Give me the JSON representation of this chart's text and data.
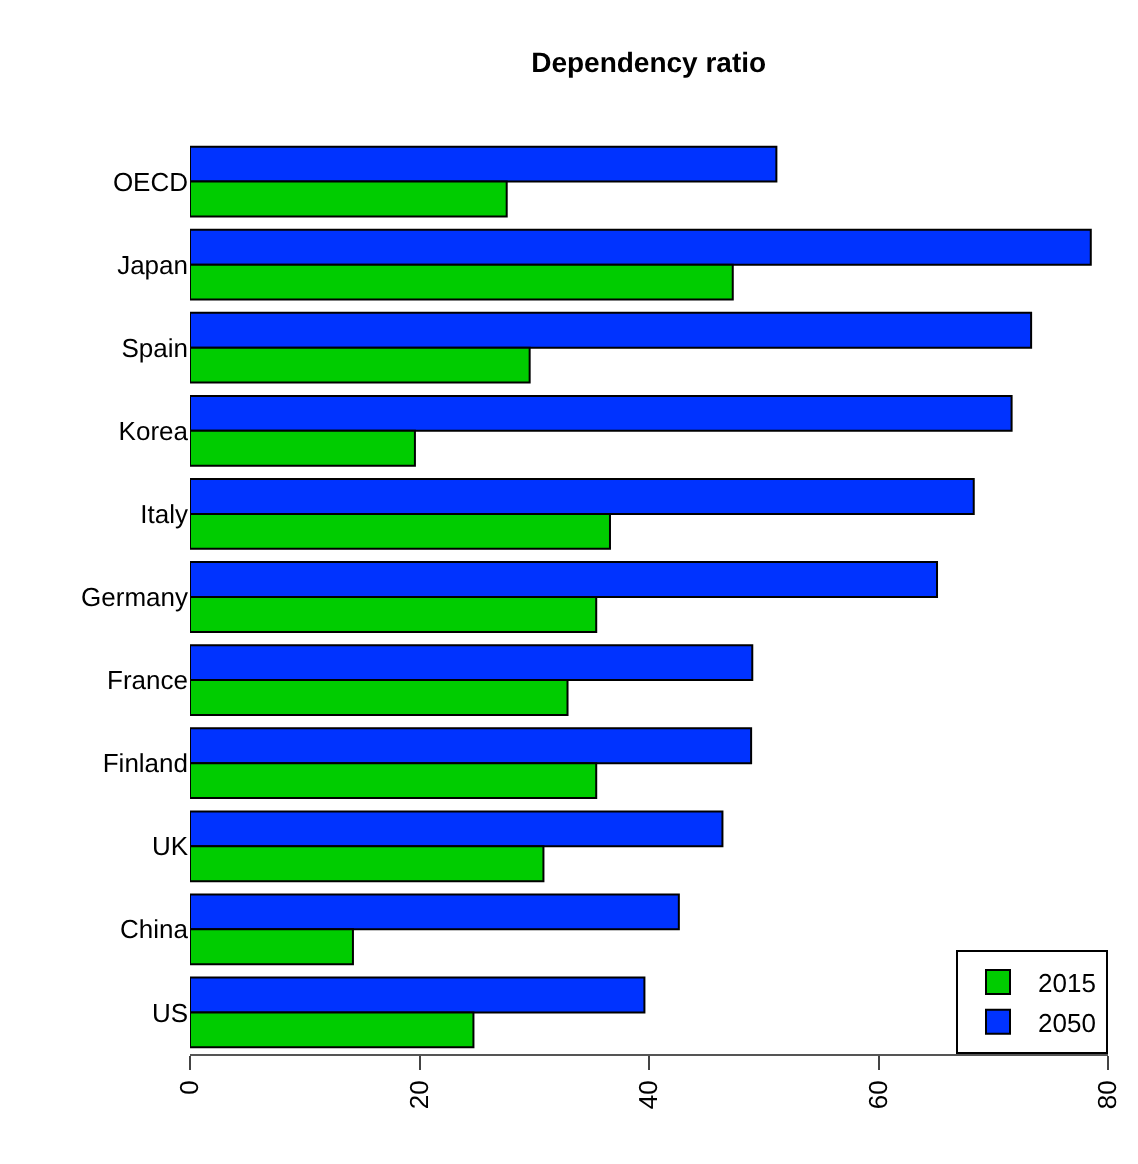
{
  "chart_data": {
    "type": "bar",
    "orientation": "horizontal",
    "title": "Dependency ratio",
    "categories": [
      "OECD",
      "Japan",
      "Spain",
      "Korea",
      "Italy",
      "Germany",
      "France",
      "Finland",
      "UK",
      "China",
      "US"
    ],
    "series": [
      {
        "name": "2015",
        "color": "#00cc00",
        "values": [
          27.6,
          47.3,
          29.6,
          19.6,
          36.6,
          35.4,
          32.9,
          35.4,
          30.8,
          14.2,
          24.7
        ]
      },
      {
        "name": "2050",
        "color": "#0033ff",
        "values": [
          51.1,
          78.5,
          73.3,
          71.6,
          68.3,
          65.1,
          49.0,
          48.9,
          46.4,
          42.6,
          39.6
        ]
      }
    ],
    "xlim": [
      0,
      80
    ],
    "xticks": [
      0,
      20,
      40,
      60,
      80
    ],
    "grid": false,
    "legend": "bottom right"
  }
}
